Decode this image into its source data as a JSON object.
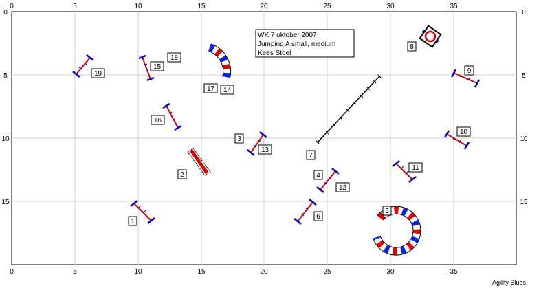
{
  "arena": {
    "x_ticks": [
      "0",
      "5",
      "10",
      "15",
      "20",
      "25",
      "30",
      "35"
    ],
    "y_ticks": [
      "0",
      "5",
      "10",
      "15"
    ]
  },
  "info_box": {
    "line1": "WK 7 oktober 2007",
    "line2": "Jumping  A small, medium",
    "line3": "Kees Stoel"
  },
  "obstacle_numbers": [
    "1",
    "2",
    "3",
    "4",
    "5",
    "6",
    "7",
    "8",
    "9",
    "10",
    "11",
    "12",
    "13",
    "14",
    "15",
    "16",
    "17",
    "18",
    "19"
  ],
  "footer": "Agility Blues",
  "colors": {
    "bar_red": "#e00000",
    "stand_blue": "#0000cc",
    "tunnel_red": "#e00000",
    "tunnel_blue": "#0022ee",
    "grid": "#d0d0d0"
  }
}
